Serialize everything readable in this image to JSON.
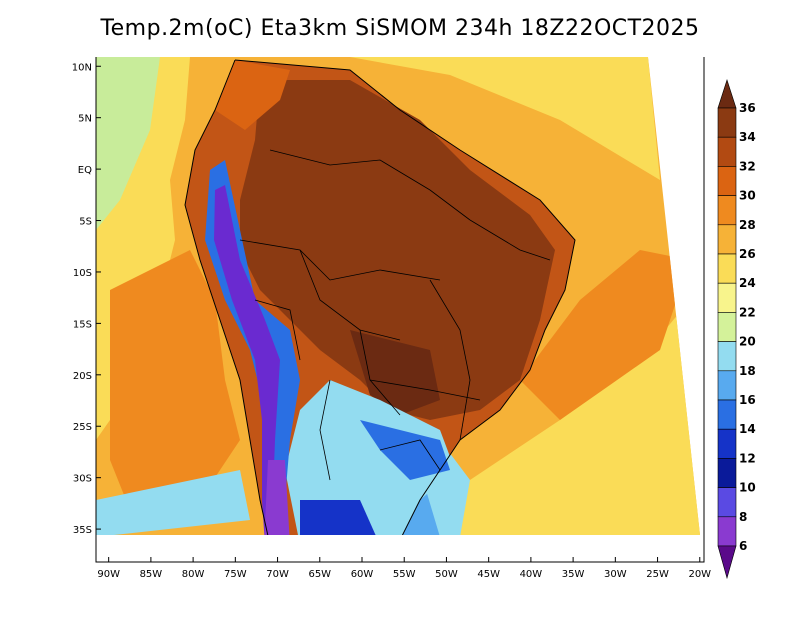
{
  "title": "Temp.2m(oC) Eta3km SiSMOM 234h 18Z22OCT2025",
  "map": {
    "lon_range": [
      -91,
      -19
    ],
    "lat_range": [
      -38,
      11
    ],
    "lon_ticks": [
      "90W",
      "85W",
      "80W",
      "75W",
      "70W",
      "65W",
      "60W",
      "55W",
      "50W",
      "45W",
      "40W",
      "35W",
      "30W",
      "25W",
      "20W"
    ],
    "lon_tick_values": [
      -90,
      -85,
      -80,
      -75,
      -70,
      -65,
      -60,
      -55,
      -50,
      -45,
      -40,
      -35,
      -30,
      -25,
      -20
    ],
    "lat_ticks": [
      "10N",
      "5N",
      "EQ",
      "5S",
      "10S",
      "15S",
      "20S",
      "25S",
      "30S",
      "35S"
    ],
    "lat_tick_values": [
      10,
      5,
      0,
      -5,
      -10,
      -15,
      -20,
      -25,
      -30,
      -35
    ]
  },
  "colorbar": {
    "labels": [
      "36",
      "34",
      "32",
      "30",
      "28",
      "26",
      "24",
      "22",
      "20",
      "18",
      "16",
      "14",
      "12",
      "10",
      "8",
      "6"
    ],
    "levels": [
      36,
      34,
      32,
      30,
      28,
      26,
      24,
      22,
      20,
      18,
      16,
      14,
      12,
      10,
      8,
      6
    ],
    "colors": [
      "#6b2a12",
      "#8b3a12",
      "#b24a12",
      "#db6412",
      "#ef8a1f",
      "#f6b237",
      "#fadc57",
      "#f8f48c",
      "#d4f29a",
      "#93dcf0",
      "#58aaef",
      "#2a6fe3",
      "#1533c8",
      "#0a1a9a",
      "#5a4ae3",
      "#8a3ad0",
      "#5a0a8a"
    ],
    "colors_note_free": true
  },
  "colors": {
    "land_hot": "#8b3a12",
    "land_warm": "#c25516",
    "ocean_warm": "#ef8a1f",
    "ocean_mild": "#f6b237",
    "ocean_yellow": "#fadc57",
    "ocean_green": "#c8ec9a",
    "ocean_cool": "#7ccaf0",
    "andes_cold": "#2a6fe3",
    "andes_very_cold": "#6a2ad0"
  }
}
